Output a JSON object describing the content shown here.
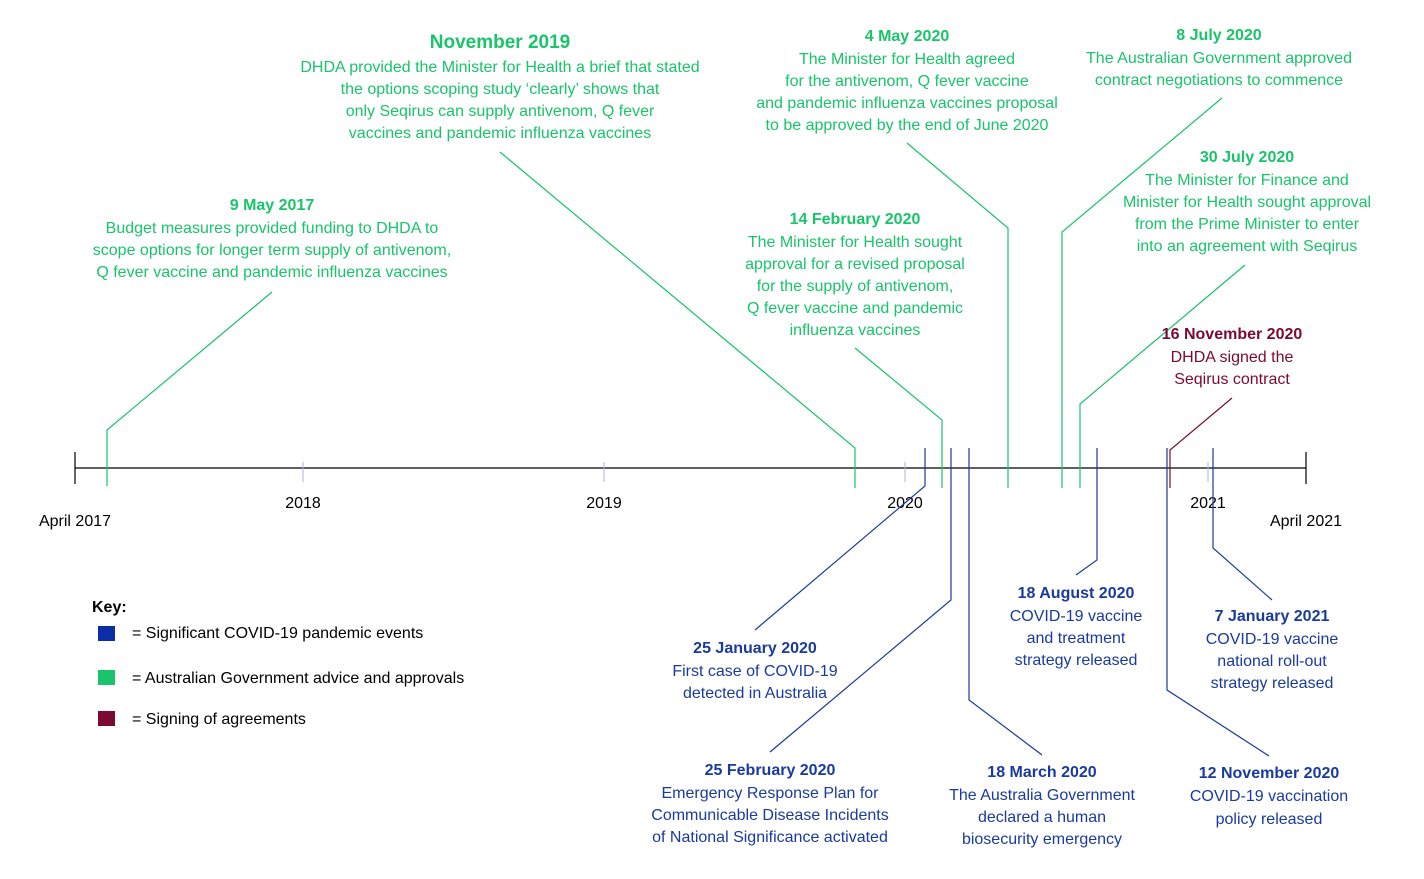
{
  "axis": {
    "start_label": "April 2017",
    "end_label": "April 2021",
    "year_labels": [
      "2018",
      "2019",
      "2020",
      "2021"
    ]
  },
  "key": {
    "title": "Key:",
    "items": [
      {
        "label": "= Significant COVID-19 pandemic events",
        "color": "#0b2ea8"
      },
      {
        "label": "= Australian Government advice and approvals",
        "color": "#19c46a"
      },
      {
        "label": "= Signing of agreements",
        "color": "#7a0a33"
      }
    ]
  },
  "events": [
    {
      "date": "9 May 2017",
      "color": "#19c46a",
      "lines": [
        "Budget measures provided funding to DHDA to",
        "scope options for longer term supply of antivenom,",
        "Q fever vaccine and pandemic influenza vaccines"
      ]
    },
    {
      "date": "November 2019",
      "color": "#19c46a",
      "lines": [
        "DHDA provided the Minister for Health a brief that stated",
        "the options scoping study ‘clearly’ shows that",
        "only Seqirus can supply antivenom, Q fever",
        "vaccines and pandemic influenza vaccines"
      ]
    },
    {
      "date": "14 February 2020",
      "color": "#19c46a",
      "lines": [
        "The Minister for Health sought",
        "approval for a revised proposal",
        "for the supply of antivenom,",
        "Q fever vaccine and pandemic",
        "influenza vaccines"
      ]
    },
    {
      "date": "4 May 2020",
      "color": "#19c46a",
      "lines": [
        "The Minister for Health agreed",
        "for the antivenom, Q fever vaccine",
        "and pandemic influenza vaccines proposal",
        "to be approved by the end of June 2020"
      ]
    },
    {
      "date": "8 July 2020",
      "color": "#19c46a",
      "lines": [
        "The Australian Government approved",
        "contract negotiations to commence"
      ]
    },
    {
      "date": "30 July 2020",
      "color": "#19c46a",
      "lines": [
        "The Minister for Finance and",
        "Minister for Health sought approval",
        "from the Prime Minister to enter",
        "into an agreement with Seqirus"
      ]
    },
    {
      "date": "16 November 2020",
      "color": "#7a0a33",
      "lines": [
        "DHDA signed the",
        "Seqirus contract"
      ]
    },
    {
      "date": "25 January 2020",
      "color": "#1a3a9e",
      "lines": [
        "First case of COVID-19",
        "detected in Australia"
      ]
    },
    {
      "date": "25 February 2020",
      "color": "#1a3a9e",
      "lines": [
        "Emergency Response Plan for",
        "Communicable Disease Incidents",
        "of National Significance activated"
      ]
    },
    {
      "date": "18 March 2020",
      "color": "#1a3a9e",
      "lines": [
        "The Australia Government",
        "declared a human",
        "biosecurity emergency"
      ]
    },
    {
      "date": "18 August 2020",
      "color": "#1a3a9e",
      "lines": [
        "COVID-19 vaccine",
        "and treatment",
        "strategy released"
      ]
    },
    {
      "date": "7 January 2021",
      "color": "#1a3a9e",
      "lines": [
        "COVID-19 vaccine",
        "national roll-out",
        "strategy released"
      ]
    },
    {
      "date": "12 November 2020",
      "color": "#1a3a9e",
      "lines": [
        "COVID-19 vaccination",
        "policy released"
      ]
    }
  ]
}
